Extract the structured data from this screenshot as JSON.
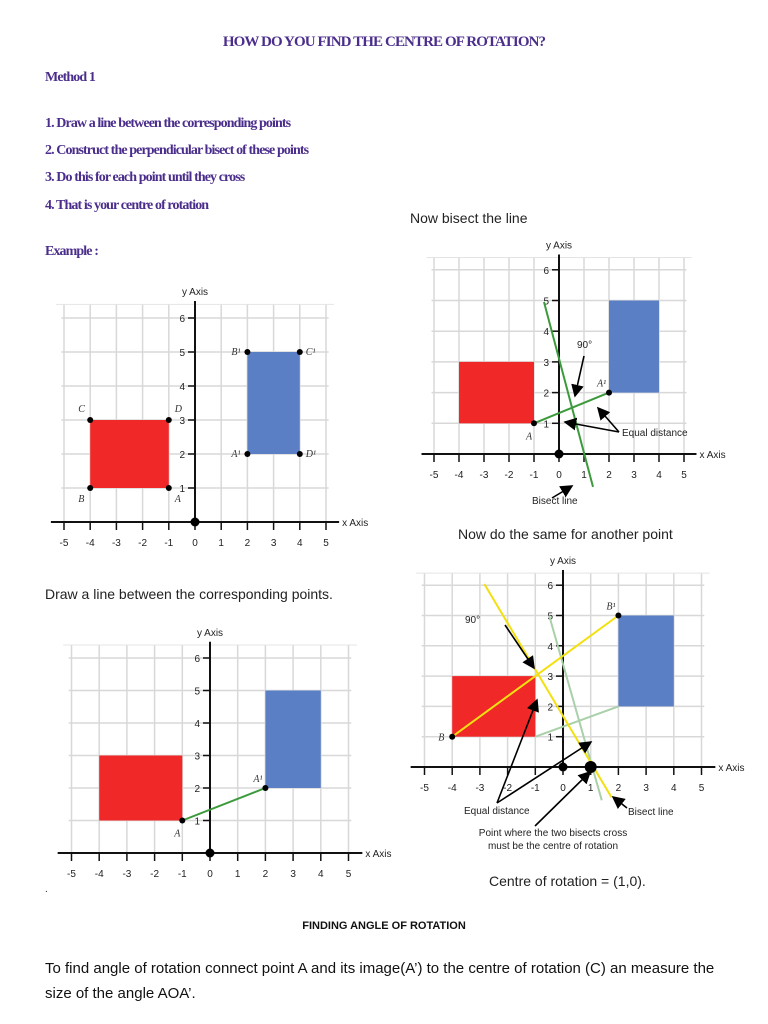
{
  "title": "HOW DO YOU FIND THE CENTRE OF ROTATION?",
  "method": "Method 1",
  "steps": [
    "1. Draw a line between the corresponding points",
    "2. Construct the perpendicular bisect of these points",
    "3. Do this for each point until they cross",
    "4. That is your centre of rotation"
  ],
  "example_label": "Example :",
  "captions": {
    "bisect": "Now bisect the line",
    "draw_line": "Draw a line between the corresponding points.",
    "same_other": "Now do the same for another point",
    "centre": "Centre of rotation = (1,0).",
    "dot": "."
  },
  "axes": {
    "x_label": "x Axis",
    "y_label": "y Axis",
    "x_ticks": [
      "-5",
      "-4",
      "-3",
      "-2",
      "-1",
      "0",
      "1",
      "2",
      "3",
      "4",
      "5"
    ],
    "y_ticks": [
      "1",
      "2",
      "3",
      "4",
      "5",
      "6"
    ]
  },
  "colors": {
    "heading": "#4b2e8c",
    "object": "#f02828",
    "image": "#5b7fc4",
    "construction_1": "#3c9a3c",
    "construction_2": "#f2e010",
    "faint": "#a9d0a9"
  },
  "graphs": [
    {
      "id": "example",
      "object_rect": [
        [
          -4,
          1
        ],
        [
          -1,
          3
        ]
      ],
      "image_rect": [
        [
          2,
          2
        ],
        [
          4,
          5
        ]
      ],
      "points": [
        {
          "label": "C",
          "x": -4,
          "y": 3
        },
        {
          "label": "D",
          "x": -1,
          "y": 3
        },
        {
          "label": "B",
          "x": -4,
          "y": 1
        },
        {
          "label": "A",
          "x": -1,
          "y": 1
        },
        {
          "label": "B¹",
          "x": 2,
          "y": 5
        },
        {
          "label": "C¹",
          "x": 4,
          "y": 5
        },
        {
          "label": "A¹",
          "x": 2,
          "y": 2
        },
        {
          "label": "D¹",
          "x": 4,
          "y": 2
        }
      ],
      "segments": []
    },
    {
      "id": "bisect",
      "object_rect": [
        [
          -4,
          1
        ],
        [
          -1,
          3
        ]
      ],
      "image_rect": [
        [
          2,
          2
        ],
        [
          4,
          5
        ]
      ],
      "points": [
        {
          "label": "A",
          "x": -1,
          "y": 1
        },
        {
          "label": "A¹",
          "x": 2,
          "y": 2
        }
      ],
      "segments": [
        {
          "from": [
            -1,
            1
          ],
          "to": [
            2,
            2
          ],
          "color": "#3c9a3c"
        },
        {
          "from": [
            -0.6,
            4.95
          ],
          "to": [
            1.36,
            -1.07
          ],
          "color": "#3c9a3c"
        }
      ],
      "annotations": {
        "angle": "90°",
        "equal": "Equal distance",
        "bisect_line": "Bisect line"
      }
    },
    {
      "id": "line",
      "object_rect": [
        [
          -4,
          1
        ],
        [
          -1,
          3
        ]
      ],
      "image_rect": [
        [
          2,
          2
        ],
        [
          4,
          5
        ]
      ],
      "points": [
        {
          "label": "A",
          "x": -1,
          "y": 1
        },
        {
          "label": "A¹",
          "x": 2,
          "y": 2
        }
      ],
      "segments": [
        {
          "from": [
            -1,
            1
          ],
          "to": [
            2,
            2
          ],
          "color": "#3c9a3c"
        }
      ]
    },
    {
      "id": "second",
      "object_rect": [
        [
          -4,
          1
        ],
        [
          -1,
          3
        ]
      ],
      "image_rect": [
        [
          2,
          2
        ],
        [
          4,
          5
        ]
      ],
      "points": [
        {
          "label": "B",
          "x": -4,
          "y": 1
        },
        {
          "label": "B¹",
          "x": 2,
          "y": 5
        }
      ],
      "segments": [
        {
          "from": [
            -1,
            1
          ],
          "to": [
            2,
            2
          ],
          "color": "#a9d0a9"
        },
        {
          "from": [
            -0.5,
            5
          ],
          "to": [
            1.4,
            -1.1
          ],
          "color": "#a9d0a9"
        },
        {
          "from": [
            -4,
            1
          ],
          "to": [
            2,
            5
          ],
          "color": "#f2e010"
        },
        {
          "from": [
            -2.84,
            6.04
          ],
          "to": [
            1.75,
            -1.0
          ],
          "color": "#f2e010"
        }
      ],
      "centre": {
        "x": 1,
        "y": 0
      },
      "annotations": {
        "angle": "90°",
        "equal": "Equal distance",
        "bisect_line": "Bisect line",
        "cross_1": "Point where the two bisects cross",
        "cross_2": "must be the centre of rotation"
      }
    }
  ],
  "section_heading": "FINDING ANGLE OF ROTATION",
  "angle_text": "To find angle of rotation connect point A and its image(A’) to the centre of rotation (C) an measure the size of the angle AOA’."
}
